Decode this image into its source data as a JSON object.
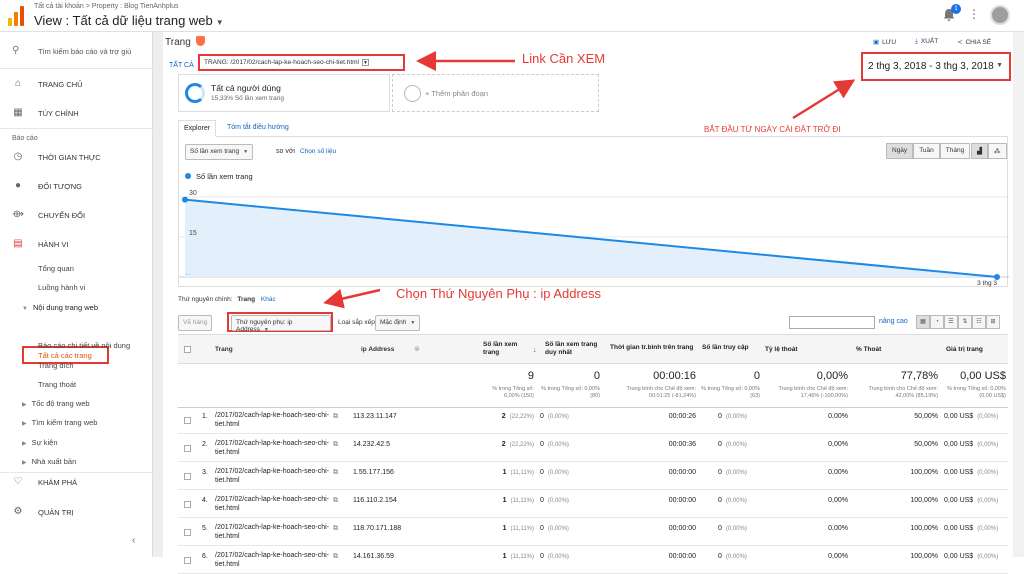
{
  "header": {
    "breadcrumb": "Tất cả tài khoản > Property : Blog TienAnhplus",
    "view_title": "View : Tất cả dữ liệu trang web",
    "notification_count": "1"
  },
  "sidebar": {
    "search": "Tìm kiếm báo cáo và trợ giú",
    "home": "TRANG CHỦ",
    "customize": "TÙY CHỈNH",
    "reports_label": "Báo cáo",
    "realtime": "THỜI GIAN THỰC",
    "audience": "ĐỐI TƯỢNG",
    "acquisition": "CHUYỂN ĐỔI",
    "behavior": "HÀNH VI",
    "behavior_items": [
      "Tổng quan",
      "Luồng hành vi",
      "Nội dung trang web",
      "Tất cả các trang",
      "Báo cáo chi tiết về nội dung",
      "Trang đích",
      "Trang thoát",
      "Tốc độ trang web",
      "Tìm kiếm trang web",
      "Sự kiện",
      "Nhà xuất bản"
    ],
    "discover": "KHÁM PHÁ",
    "admin": "QUẢN TRỊ"
  },
  "report": {
    "title": "Trang",
    "save": "LƯU",
    "export": "XUẤT",
    "share": "CHIA SẺ",
    "all_label": "TẤT CẢ",
    "segment_filter": "TRANG: /2017/02/cach-lap-ke-hoach-seo-chi-tiet.html",
    "date_range": "2 thg 3, 2018 - 3 thg 3, 2018",
    "segment_name": "Tất cả người dùng",
    "segment_sub": "15,33% Số lần xem trang",
    "add_segment": "+ Thêm phân đoạn",
    "tab_explorer": "Explorer",
    "tab_summary": "Tóm tắt điều hướng",
    "metric_select": "Số lần xem trang",
    "vs": "so với",
    "choose_metric": "Chọn số liệu",
    "day": "Ngày",
    "week": "Tuần",
    "month": "Tháng",
    "primary_dim_label": "Thứ nguyên chính:",
    "primary_dim": "Trang",
    "other": "Khác",
    "plot_rows": "Vẽ hàng",
    "secondary_dim": "Thứ nguyên phụ: ip Address",
    "sort_type": "Loại sắp xếp:",
    "sort_default": "Mặc định",
    "advanced": "nâng cao"
  },
  "annotations": {
    "link": "Link Cần XEM",
    "start": "BẮT ĐẦU TỪ NGÀY CÀI ĐẶT TRỞ ĐI",
    "choose_dim": "Chọn Thứ Nguyên Phụ : ip Address"
  },
  "chart_data": {
    "type": "area",
    "title": "",
    "legend": "Số lần xem trang",
    "y_ticks": [
      "30",
      "15"
    ],
    "x_labels": [
      "...",
      "3 thg 3"
    ],
    "x": [
      "2 thg 3",
      "3 thg 3"
    ],
    "series": [
      {
        "name": "Số lần xem trang",
        "values": [
          29,
          0
        ]
      }
    ],
    "ylim": [
      0,
      30
    ],
    "color": "#1e88e5"
  },
  "table": {
    "headers": {
      "page": "Trang",
      "ip": "ip Address",
      "pageviews": "Số lần xem trang",
      "unique": "Số lần xem trang duy nhất",
      "avg_time": "Thời gian tr.bình trên trang",
      "entrances": "Số lần truy cập",
      "exit_rate": "Tỷ lệ thoát",
      "exit_pct": "% Thoát",
      "value": "Giá trị trang"
    },
    "totals": {
      "pageviews": "9",
      "pageviews_sub": "% trong Tổng số: 6,00% (150)",
      "unique": "0",
      "unique_sub": "% trong Tổng số: 0,00% (80)",
      "avg_time": "00:00:16",
      "avg_time_sub": "Trung bình cho Chế độ xem: 00:01:25 (-81,24%)",
      "entrances": "0",
      "entrances_sub": "% trong Tổng số: 0,00% (63)",
      "exit_rate": "0,00%",
      "exit_rate_sub": "Trung bình cho Chế độ xem: 17,46% (-100,00%)",
      "exit_pct": "77,78%",
      "exit_pct_sub": "Trung bình cho Chế độ xem: 42,00% (85,19%)",
      "value": "0,00 US$",
      "value_sub": "% trong Tổng số: 0,00% (0,00 US$)"
    },
    "rows": [
      {
        "n": "1.",
        "page": "/2017/02/cach-lap-ke-hoach-seo-chi-tiet.html",
        "ip": "113.23.11.147",
        "pv": "2",
        "pv_pct": "(22,22%)",
        "u": "0",
        "u_pct": "(0,00%)",
        "t": "00:00:26",
        "e": "0",
        "e_pct": "(0,00%)",
        "er": "0,00%",
        "ex": "50,00%",
        "v": "0,00 US$",
        "v_pct": "(0,00%)"
      },
      {
        "n": "2.",
        "page": "/2017/02/cach-lap-ke-hoach-seo-chi-tiet.html",
        "ip": "14.232.42.5",
        "pv": "2",
        "pv_pct": "(22,22%)",
        "u": "0",
        "u_pct": "(0,00%)",
        "t": "00:00:36",
        "e": "0",
        "e_pct": "(0,00%)",
        "er": "0,00%",
        "ex": "50,00%",
        "v": "0,00 US$",
        "v_pct": "(0,00%)"
      },
      {
        "n": "3.",
        "page": "/2017/02/cach-lap-ke-hoach-seo-chi-tiet.html",
        "ip": "1.55.177.156",
        "pv": "1",
        "pv_pct": "(11,11%)",
        "u": "0",
        "u_pct": "(0,00%)",
        "t": "00:00:00",
        "e": "0",
        "e_pct": "(0,00%)",
        "er": "0,00%",
        "ex": "100,00%",
        "v": "0,00 US$",
        "v_pct": "(0,00%)"
      },
      {
        "n": "4.",
        "page": "/2017/02/cach-lap-ke-hoach-seo-chi-tiet.html",
        "ip": "116.110.2.154",
        "pv": "1",
        "pv_pct": "(11,11%)",
        "u": "0",
        "u_pct": "(0,00%)",
        "t": "00:00:00",
        "e": "0",
        "e_pct": "(0,00%)",
        "er": "0,00%",
        "ex": "100,00%",
        "v": "0,00 US$",
        "v_pct": "(0,00%)"
      },
      {
        "n": "5.",
        "page": "/2017/02/cach-lap-ke-hoach-seo-chi-tiet.html",
        "ip": "118.70.171.188",
        "pv": "1",
        "pv_pct": "(11,11%)",
        "u": "0",
        "u_pct": "(0,00%)",
        "t": "00:00:00",
        "e": "0",
        "e_pct": "(0,00%)",
        "er": "0,00%",
        "ex": "100,00%",
        "v": "0,00 US$",
        "v_pct": "(0,00%)"
      },
      {
        "n": "6.",
        "page": "/2017/02/cach-lap-ke-hoach-seo-chi-tiet.html",
        "ip": "14.161.36.59",
        "pv": "1",
        "pv_pct": "(11,11%)",
        "u": "0",
        "u_pct": "(0,00%)",
        "t": "00:00:00",
        "e": "0",
        "e_pct": "(0,00%)",
        "er": "0,00%",
        "ex": "100,00%",
        "v": "0,00 US$",
        "v_pct": "(0,00%)"
      }
    ]
  }
}
